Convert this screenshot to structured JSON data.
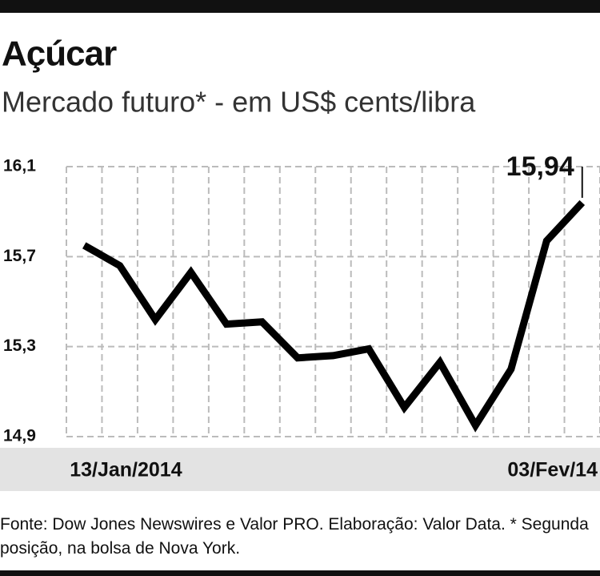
{
  "chart_data": {
    "type": "line",
    "title": "Açúcar",
    "subtitle": "Mercado futuro* - em US$ cents/libra",
    "source": "Fonte: Dow Jones Newswires e Valor PRO. Elaboração: Valor Data.  * Segunda posição, na bolsa de Nova York.",
    "categories": [
      "13/Jan/2014",
      null,
      null,
      null,
      null,
      null,
      null,
      null,
      null,
      null,
      null,
      null,
      null,
      null,
      "03/Fev/14"
    ],
    "values": [
      15.75,
      15.66,
      15.42,
      15.63,
      15.4,
      15.41,
      15.25,
      15.26,
      15.29,
      15.03,
      15.23,
      14.95,
      15.2,
      15.77,
      15.94
    ],
    "value_labels": [
      null,
      null,
      null,
      null,
      null,
      null,
      null,
      null,
      null,
      null,
      null,
      null,
      null,
      null,
      "15,94"
    ],
    "color": "#000000",
    "ylim": [
      14.9,
      16.1
    ],
    "yticks": [
      {
        "value": 14.9,
        "label": "14,9"
      },
      {
        "value": 15.3,
        "label": "15,3"
      },
      {
        "value": 15.7,
        "label": "15,7"
      },
      {
        "value": 16.1,
        "label": "16,1"
      }
    ],
    "grid": true
  }
}
